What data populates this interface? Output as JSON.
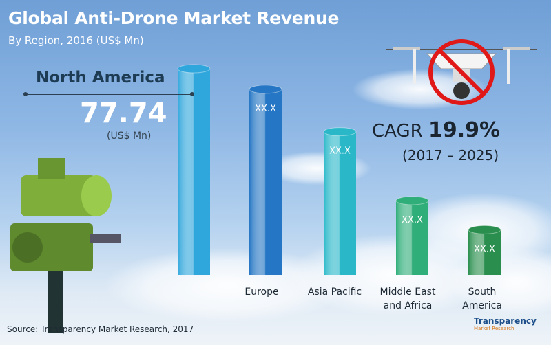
{
  "chart_data": {
    "type": "bar",
    "title": "Global Anti-Drone Market Revenue",
    "subtitle": "By Region, 2016 (US$ Mn)",
    "categories": [
      "North America",
      "Europe",
      "Asia Pacific",
      "Middle East and Africa",
      "South America"
    ],
    "category_lines": [
      [
        ""
      ],
      [
        "Europe"
      ],
      [
        "Asia Pacific"
      ],
      [
        "Middle East",
        "and Africa"
      ],
      [
        "South",
        "America"
      ]
    ],
    "values": [
      77.74,
      70,
      54,
      28,
      17
    ],
    "data_labels": [
      "",
      "XX.X",
      "XX.X",
      "XX.X",
      "XX.X"
    ],
    "colors": [
      "#2fa6dc",
      "#2576c4",
      "#2ab8c9",
      "#2fae79",
      "#2a8f4e"
    ],
    "grid": false,
    "legend": "none"
  },
  "highlight": {
    "region": "North America",
    "value": "77.74",
    "unit": "(US$ Mn)"
  },
  "cagr": {
    "label": "CAGR",
    "value": "19.9%",
    "period": "(2017 – 2025)"
  },
  "source": "Source: Transparency Market Research, 2017",
  "logo": {
    "line1": "Transparency",
    "line2": "Market Research"
  },
  "icons": [
    "no-drone-icon",
    "anti-drone-turret-icon"
  ]
}
